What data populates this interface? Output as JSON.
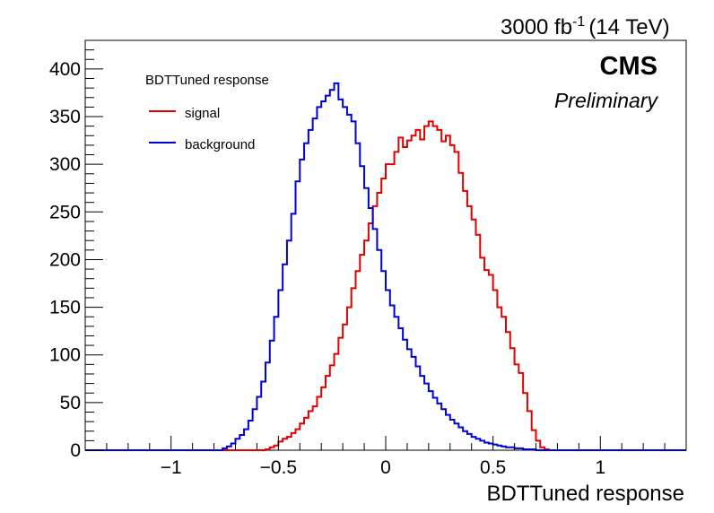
{
  "header": {
    "lumi_value": "3000 fb",
    "lumi_exp": "-1",
    "energy": "(14 TeV)",
    "experiment": "CMS",
    "status": "Preliminary"
  },
  "chart_data": {
    "type": "histogram",
    "title": "",
    "xlabel": "BDTTuned response",
    "ylabel": "",
    "xlim": [
      -1.4,
      1.4
    ],
    "ylim": [
      0,
      430
    ],
    "x_ticks": [
      -1,
      -0.5,
      0,
      0.5,
      1
    ],
    "x_tick_labels": [
      "−1",
      "−0.5",
      "0",
      "0.5",
      "1"
    ],
    "y_ticks": [
      0,
      50,
      100,
      150,
      200,
      250,
      300,
      350,
      400
    ],
    "y_tick_labels": [
      "0",
      "50",
      "100",
      "150",
      "200",
      "250",
      "300",
      "350",
      "400"
    ],
    "grid": false,
    "legend": {
      "title": "BDTTuned response",
      "placement": "top-left",
      "entries": [
        {
          "label": "signal",
          "color": "#e00000"
        },
        {
          "label": "background",
          "color": "#0000d8"
        }
      ]
    },
    "bin_edges": [
      -0.76,
      1.12
    ],
    "bin_width": 0.02,
    "series": [
      {
        "name": "signal",
        "color": "#e00000",
        "values": [
          0,
          0,
          0,
          0,
          0,
          0,
          0,
          0,
          0,
          0,
          1,
          3,
          5,
          9,
          12,
          14,
          18,
          22,
          28,
          34,
          41,
          46,
          56,
          66,
          78,
          89,
          101,
          118,
          132,
          150,
          170,
          188,
          205,
          220,
          238,
          256,
          270,
          285,
          300,
          300,
          313,
          328,
          318,
          325,
          330,
          336,
          326,
          340,
          345,
          340,
          336,
          324,
          330,
          320,
          313,
          291,
          272,
          256,
          242,
          226,
          202,
          189,
          184,
          168,
          150,
          140,
          124,
          107,
          90,
          81,
          60,
          41,
          21,
          10,
          3,
          1,
          0,
          0,
          0,
          0,
          0,
          0,
          0,
          0,
          0,
          0,
          0,
          0,
          0,
          0,
          0,
          0,
          0,
          0
        ]
      },
      {
        "name": "background",
        "color": "#0000d8",
        "values": [
          2,
          4,
          7,
          12,
          16,
          22,
          31,
          43,
          56,
          72,
          92,
          115,
          140,
          168,
          195,
          220,
          248,
          282,
          305,
          322,
          336,
          348,
          360,
          366,
          372,
          378,
          385,
          368,
          360,
          352,
          345,
          322,
          298,
          275,
          254,
          232,
          210,
          188,
          168,
          152,
          140,
          128,
          116,
          106,
          98,
          88,
          78,
          70,
          62,
          55,
          49,
          43,
          37,
          32,
          28,
          24,
          20,
          17,
          14,
          12,
          10,
          8,
          7,
          6,
          5,
          4,
          3,
          3,
          2,
          2,
          1,
          1,
          1,
          0,
          0,
          0,
          0,
          0,
          0,
          0,
          0,
          0,
          0,
          0,
          0,
          0,
          0,
          0,
          0,
          0,
          0,
          0,
          0,
          0
        ]
      }
    ]
  }
}
